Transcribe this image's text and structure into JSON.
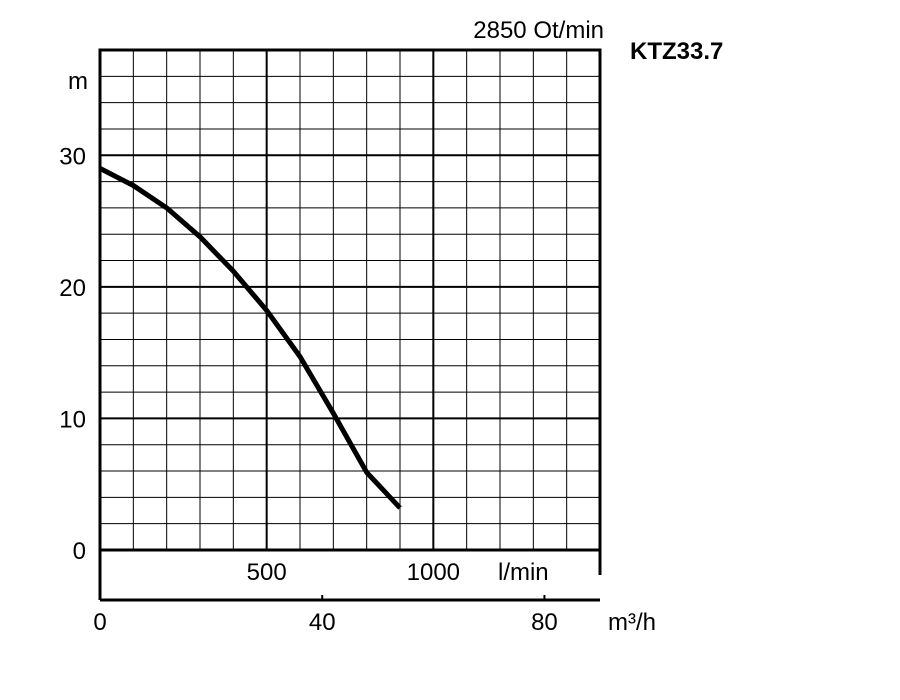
{
  "chart_data": {
    "type": "line",
    "title": "2850 Ot/min",
    "model": "KTZ33.7",
    "ylabel": "m",
    "ylim": [
      0,
      38
    ],
    "yticks": [
      0,
      10,
      20,
      30
    ],
    "ytick_labels": [
      "0",
      "10",
      "20",
      "30"
    ],
    "grid": true,
    "flow_lmin": {
      "unit_label": "l/min",
      "xlim": [
        0,
        1500
      ],
      "ticks": [
        500,
        1000
      ],
      "tick_labels": [
        "500",
        "1000"
      ]
    },
    "flow_m3h": {
      "unit_label": "m³/h",
      "xlim": [
        0,
        90
      ],
      "ticks": [
        0,
        40,
        80
      ],
      "tick_labels": [
        "0",
        "40",
        "80"
      ]
    },
    "series": [
      {
        "x": [
          0,
          100,
          200,
          300,
          400,
          500,
          600,
          700,
          800,
          900
        ],
        "y": [
          29,
          27.7,
          26,
          23.8,
          21.2,
          18.2,
          14.7,
          10.4,
          5.9,
          3.2
        ]
      }
    ]
  }
}
